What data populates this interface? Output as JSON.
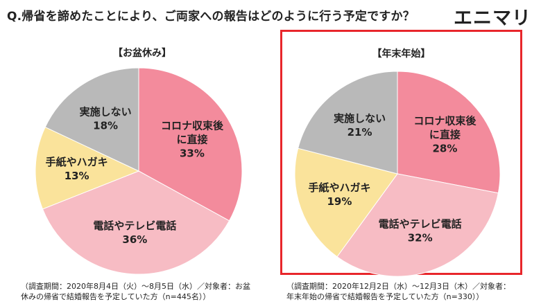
{
  "question": "Q.帰省を諦めたことにより、ご両家への報告はどのように行う予定ですか？",
  "logo": "エニマリ",
  "chart_data": [
    {
      "type": "pie",
      "title": "【お盆休み】",
      "slices": [
        {
          "label": [
            "コロナ収束後",
            "に直接"
          ],
          "value": 33,
          "value_label": "33%",
          "color": "#f38b9c"
        },
        {
          "label": [
            "電話やテレビ電話"
          ],
          "value": 36,
          "value_label": "36%",
          "color": "#f7bcc4"
        },
        {
          "label": [
            "手紙やハガキ"
          ],
          "value": 13,
          "value_label": "13%",
          "color": "#fae39b"
        },
        {
          "label": [
            "実施しない"
          ],
          "value": 18,
          "value_label": "18%",
          "color": "#b9b9b9"
        }
      ],
      "footnote": [
        "（調査期間：2020年8月4日（火）〜8月5日（水）／対象者：お盆",
        "休みの帰省で結婚報告を予定していた方（n=445名））"
      ]
    },
    {
      "type": "pie",
      "title": "【年末年始】",
      "slices": [
        {
          "label": [
            "コロナ収束後",
            "に直接"
          ],
          "value": 28,
          "value_label": "28%",
          "color": "#f38b9c"
        },
        {
          "label": [
            "電話やテレビ電話"
          ],
          "value": 32,
          "value_label": "32%",
          "color": "#f7bcc4"
        },
        {
          "label": [
            "手紙やハガキ"
          ],
          "value": 19,
          "value_label": "19%",
          "color": "#fae39b"
        },
        {
          "label": [
            "実施しない"
          ],
          "value": 21,
          "value_label": "21%",
          "color": "#b9b9b9"
        }
      ],
      "footnote": [
        "（調査期間：2020年12月2日（水）〜12月3日（木）／対象者：",
        "年末年始の帰省で結婚報告を予定していた方（n=330））"
      ]
    }
  ]
}
